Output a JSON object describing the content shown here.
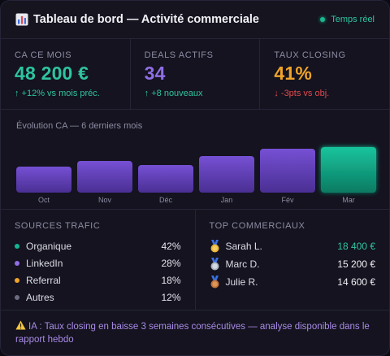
{
  "header": {
    "title": "Tableau de bord — Activité commerciale",
    "live_label": "Temps réel"
  },
  "kpis": [
    {
      "label": "CA CE MOIS",
      "value": "48 200 €",
      "delta": "↑ +12% vs mois préc.",
      "value_color": "#2ec4a0",
      "delta_color": "#2ec4a0"
    },
    {
      "label": "DEALS ACTIFS",
      "value": "34",
      "delta": "↑ +8 nouveaux",
      "value_color": "#8f6ee6",
      "delta_color": "#2ec4a0"
    },
    {
      "label": "TAUX CLOSING",
      "value": "41%",
      "delta": "↓ -3pts vs obj.",
      "value_color": "#f0a32a",
      "delta_color": "#e5484d"
    }
  ],
  "chart_data": {
    "type": "bar",
    "title": "Évolution CA — 6 derniers mois",
    "categories": [
      "Oct",
      "Nov",
      "Déc",
      "Jan",
      "Fév",
      "Mar"
    ],
    "values": [
      32,
      39,
      34,
      45,
      54,
      56
    ],
    "ylim": [
      0,
      56
    ],
    "colors": {
      "bar": "#6d4bc6",
      "highlight": "#14b592"
    },
    "grid": false
  },
  "sources": {
    "title": "SOURCES TRAFIC",
    "items": [
      {
        "name": "Organique",
        "pct": "42%",
        "color": "#14b592"
      },
      {
        "name": "LinkedIn",
        "pct": "28%",
        "color": "#8f6ee6"
      },
      {
        "name": "Referral",
        "pct": "18%",
        "color": "#f0a32a"
      },
      {
        "name": "Autres",
        "pct": "12%",
        "color": "#6b6b80"
      }
    ]
  },
  "reps": {
    "title": "TOP COMMERCIAUX",
    "items": [
      {
        "name": "Sarah L.",
        "amount": "18 400 €",
        "medal": "gold-medal-icon",
        "amount_color": "#2ec4a0"
      },
      {
        "name": "Marc D.",
        "amount": "15 200 €",
        "medal": "silver-medal-icon",
        "amount_color": "#f0f0f5"
      },
      {
        "name": "Julie R.",
        "amount": "14 600 €",
        "medal": "bronze-medal-icon",
        "amount_color": "#f0f0f5"
      }
    ]
  },
  "alert": {
    "text": "IA : Taux closing en baisse 3 semaines consécutives — analyse disponible dans le rapport hebdo",
    "icon": "warning-icon"
  }
}
